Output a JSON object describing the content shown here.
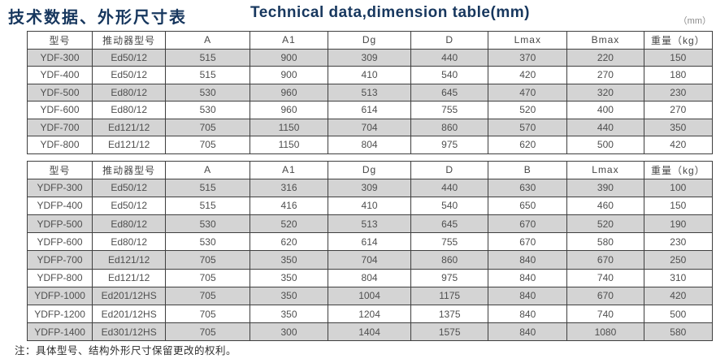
{
  "header": {
    "title_zh": "技术数据、外形尺寸表",
    "title_en": "Technical data,dimension table(mm)",
    "unit_label": "（mm）"
  },
  "table1": {
    "columns": [
      "型号",
      "推动器型号",
      "A",
      "A1",
      "Dg",
      "D",
      "Lmax",
      "Bmax",
      "重量（kg）"
    ],
    "rows": [
      [
        "YDF-300",
        "Ed50/12",
        "515",
        "900",
        "309",
        "440",
        "370",
        "220",
        "150"
      ],
      [
        "YDF-400",
        "Ed50/12",
        "515",
        "900",
        "410",
        "540",
        "420",
        "270",
        "180"
      ],
      [
        "YDF-500",
        "Ed80/12",
        "530",
        "960",
        "513",
        "645",
        "470",
        "320",
        "230"
      ],
      [
        "YDF-600",
        "Ed80/12",
        "530",
        "960",
        "614",
        "755",
        "520",
        "400",
        "270"
      ],
      [
        "YDF-700",
        "Ed121/12",
        "705",
        "1150",
        "704",
        "860",
        "570",
        "440",
        "350"
      ],
      [
        "YDF-800",
        "Ed121/12",
        "705",
        "1150",
        "804",
        "975",
        "620",
        "500",
        "420"
      ]
    ]
  },
  "table2": {
    "columns": [
      "型号",
      "推动器型号",
      "A",
      "A1",
      "Dg",
      "D",
      "B",
      "Lmax",
      "重量（kg）"
    ],
    "rows": [
      [
        "YDFP-300",
        "Ed50/12",
        "515",
        "316",
        "309",
        "440",
        "630",
        "390",
        "100"
      ],
      [
        "YDFP-400",
        "Ed50/12",
        "515",
        "416",
        "410",
        "540",
        "650",
        "460",
        "150"
      ],
      [
        "YDFP-500",
        "Ed80/12",
        "530",
        "520",
        "513",
        "645",
        "670",
        "520",
        "190"
      ],
      [
        "YDFP-600",
        "Ed80/12",
        "530",
        "620",
        "614",
        "755",
        "670",
        "580",
        "230"
      ],
      [
        "YDFP-700",
        "Ed121/12",
        "705",
        "350",
        "704",
        "860",
        "840",
        "670",
        "250"
      ],
      [
        "YDFP-800",
        "Ed121/12",
        "705",
        "350",
        "804",
        "975",
        "840",
        "740",
        "310"
      ],
      [
        "YDFP-1000",
        "Ed201/12HS",
        "705",
        "350",
        "1004",
        "1175",
        "840",
        "670",
        "420"
      ],
      [
        "YDFP-1200",
        "Ed201/12HS",
        "705",
        "350",
        "1204",
        "1375",
        "840",
        "740",
        "500"
      ],
      [
        "YDFP-1400",
        "Ed301/12HS",
        "705",
        "300",
        "1404",
        "1575",
        "840",
        "1080",
        "580"
      ]
    ]
  },
  "footnote": "注：具体型号、结构外形尺寸保留更改的权利。",
  "colors": {
    "title_navy": "#17375e",
    "row_gray": "#d4d4d4",
    "border_dark": "#3f3f3f"
  },
  "column_widths_percent": [
    9.5,
    10.7,
    12.3,
    11.4,
    12.1,
    11.3,
    11.5,
    11.2,
    10.0
  ]
}
